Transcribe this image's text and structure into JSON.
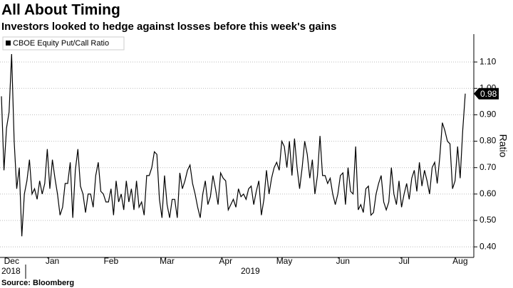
{
  "chart_data": {
    "type": "line",
    "title": "All About Timing",
    "subtitle": "Investors looked to hedge against losses before this week's gains",
    "source": "Source: Bloomberg",
    "y_axis_label": "Ratio",
    "year_labels": [
      "2018",
      "2019"
    ],
    "categories": [
      null,
      null,
      null,
      null,
      "Dec",
      null,
      null,
      null,
      null,
      null,
      null,
      null,
      null,
      null,
      null,
      null,
      null,
      null,
      null,
      null,
      "Jan",
      null,
      null,
      null,
      null,
      null,
      null,
      null,
      null,
      null,
      null,
      null,
      null,
      null,
      null,
      null,
      null,
      null,
      null,
      null,
      null,
      null,
      null,
      "Feb",
      null,
      null,
      null,
      null,
      null,
      null,
      null,
      null,
      null,
      null,
      null,
      null,
      null,
      null,
      null,
      null,
      null,
      null,
      null,
      null,
      null,
      "Mar",
      null,
      null,
      null,
      null,
      null,
      null,
      null,
      null,
      null,
      null,
      null,
      null,
      null,
      null,
      null,
      null,
      null,
      null,
      null,
      null,
      null,
      null,
      "Apr",
      null,
      null,
      null,
      null,
      null,
      null,
      null,
      null,
      null,
      null,
      null,
      null,
      null,
      null,
      null,
      null,
      null,
      null,
      null,
      null,
      null,
      null,
      "May",
      null,
      null,
      null,
      null,
      null,
      null,
      null,
      null,
      null,
      null,
      null,
      null,
      null,
      null,
      null,
      null,
      null,
      null,
      null,
      null,
      null,
      null,
      "Jun",
      null,
      null,
      null,
      null,
      null,
      null,
      null,
      null,
      null,
      null,
      null,
      null,
      null,
      null,
      null,
      null,
      null,
      null,
      null,
      null,
      null,
      null,
      null,
      "Jul",
      null,
      null,
      null,
      null,
      null,
      null,
      null,
      null,
      null,
      null,
      null,
      null,
      null,
      null,
      null,
      null,
      null,
      null,
      null,
      null,
      null,
      "Aug",
      null,
      null
    ],
    "series": [
      {
        "name": "CBOE Equity Put/Call Ratio",
        "color": "#000000",
        "values": [
          0.97,
          0.69,
          0.85,
          0.91,
          1.13,
          0.8,
          0.62,
          0.7,
          0.44,
          0.6,
          0.65,
          0.73,
          0.6,
          0.62,
          0.58,
          0.65,
          0.6,
          0.64,
          0.77,
          0.62,
          0.73,
          0.66,
          0.6,
          0.52,
          0.55,
          0.64,
          0.64,
          0.72,
          0.51,
          0.69,
          0.77,
          0.63,
          0.6,
          0.53,
          0.6,
          0.6,
          0.55,
          0.67,
          0.72,
          0.61,
          0.6,
          0.57,
          0.57,
          0.62,
          0.52,
          0.65,
          0.57,
          0.6,
          0.54,
          0.65,
          0.57,
          0.62,
          0.54,
          0.65,
          0.55,
          0.57,
          0.52,
          0.67,
          0.67,
          0.7,
          0.76,
          0.75,
          0.58,
          0.51,
          0.67,
          0.56,
          0.51,
          0.58,
          0.58,
          0.51,
          0.68,
          0.62,
          0.65,
          0.69,
          0.71,
          0.64,
          0.6,
          0.55,
          0.51,
          0.6,
          0.65,
          0.56,
          0.59,
          0.67,
          0.62,
          0.56,
          0.68,
          0.66,
          0.65,
          0.54,
          0.56,
          0.58,
          0.55,
          0.62,
          0.59,
          0.6,
          0.58,
          0.62,
          0.63,
          0.56,
          0.61,
          0.65,
          0.52,
          0.58,
          0.69,
          0.6,
          0.66,
          0.7,
          0.72,
          0.69,
          0.8,
          0.78,
          0.7,
          0.8,
          0.67,
          0.81,
          0.7,
          0.62,
          0.7,
          0.8,
          0.75,
          0.66,
          0.73,
          0.6,
          0.67,
          0.82,
          0.67,
          0.67,
          0.64,
          0.66,
          0.6,
          0.56,
          0.6,
          0.67,
          0.68,
          0.56,
          0.7,
          0.61,
          0.6,
          0.78,
          0.54,
          0.56,
          0.53,
          0.62,
          0.63,
          0.52,
          0.53,
          0.6,
          0.64,
          0.67,
          0.57,
          0.54,
          0.57,
          0.7,
          0.6,
          0.56,
          0.65,
          0.55,
          0.6,
          0.64,
          0.58,
          0.66,
          0.69,
          0.61,
          0.72,
          0.63,
          0.69,
          0.65,
          0.6,
          0.7,
          0.72,
          0.64,
          0.74,
          0.87,
          0.84,
          0.8,
          0.79,
          0.62,
          0.65,
          0.78,
          0.66,
          0.84,
          0.98
        ]
      }
    ],
    "ylim": [
      0.36,
      1.2
    ],
    "yticks": [
      {
        "value": 0.4,
        "label": "0.40"
      },
      {
        "value": 0.5,
        "label": "0.50"
      },
      {
        "value": 0.6,
        "label": "0.60"
      },
      {
        "value": 0.7,
        "label": "0.70"
      },
      {
        "value": 0.8,
        "label": "0.80"
      },
      {
        "value": 0.9,
        "label": "0.90"
      },
      {
        "value": 1.0,
        "label": "1.00"
      },
      {
        "value": 1.1,
        "label": "1.10"
      }
    ],
    "grid": true,
    "legend": "top-left"
  }
}
